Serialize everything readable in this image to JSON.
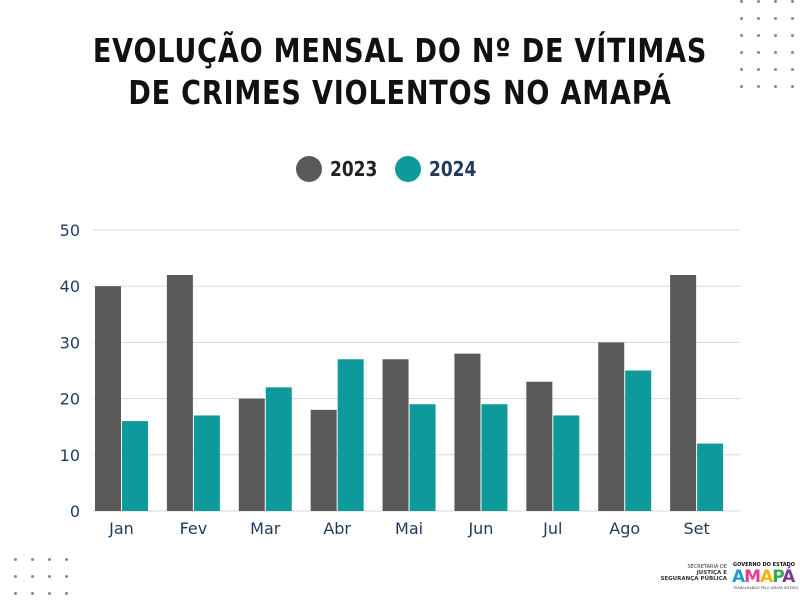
{
  "title_line1": "EVOLUÇÃO MENSAL DO Nº DE VÍTIMAS",
  "title_line2": "DE CRIMES VIOLENTOS NO AMAPÁ",
  "colors": {
    "2023": "#595959",
    "2024": "#0e9a9a",
    "grid": "#d8d8d8",
    "axis_text": "#1f3b5c"
  },
  "chart_data": {
    "type": "bar",
    "categories": [
      "Jan",
      "Fev",
      "Mar",
      "Abr",
      "Mai",
      "Jun",
      "Jul",
      "Ago",
      "Set"
    ],
    "series": [
      {
        "name": "2023",
        "values": [
          40,
          42,
          20,
          18,
          27,
          28,
          23,
          30,
          42
        ]
      },
      {
        "name": "2024",
        "values": [
          16,
          17,
          22,
          27,
          19,
          19,
          17,
          25,
          12
        ]
      }
    ],
    "yticks": [
      0,
      10,
      20,
      30,
      40,
      50
    ],
    "ylim": [
      0,
      50
    ],
    "grid": true,
    "legend": "top-center"
  },
  "logo": {
    "secretaria": "SECRETARIA DE",
    "justica": "JUSTIÇA E",
    "seguranca": "SEGURANÇA PÚBLICA",
    "governo": "GOVERNO DO ESTADO",
    "amapa": [
      "A",
      "M",
      "A",
      "P",
      "Á"
    ],
    "tagline": "TRABALHANDO PELO AMAPÁ INTEIRO"
  }
}
